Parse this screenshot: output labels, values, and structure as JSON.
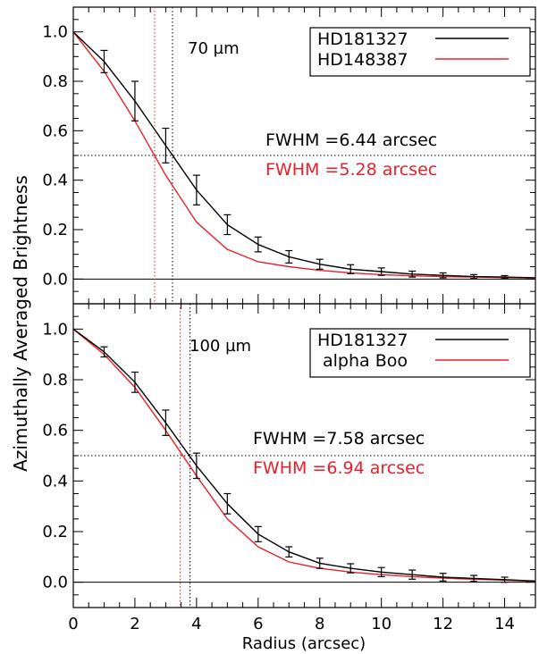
{
  "shared": {
    "xlabel": "Radius (arcsec)",
    "ylabel": "Azimuthally Averaged Brightness",
    "xlim": [
      0,
      15
    ],
    "xticks": [
      "0",
      "2",
      "4",
      "6",
      "8",
      "10",
      "12",
      "14"
    ]
  },
  "chart_data": [
    {
      "type": "line",
      "annotation": "70 µm",
      "xlim": [
        0,
        15
      ],
      "ylim": [
        -0.1,
        1.1
      ],
      "yticks": [
        "0.0",
        "0.2",
        "0.4",
        "0.6",
        "0.8",
        "1.0"
      ],
      "grid": false,
      "legend_position": "top-right",
      "series": [
        {
          "name": "HD181327",
          "color": "#000000",
          "x": [
            0,
            1,
            2,
            3,
            4,
            5,
            6,
            7,
            8,
            9,
            10,
            11,
            12,
            13,
            14,
            15
          ],
          "y": [
            1.0,
            0.88,
            0.72,
            0.54,
            0.36,
            0.22,
            0.14,
            0.09,
            0.06,
            0.04,
            0.03,
            0.02,
            0.015,
            0.01,
            0.008,
            0.005
          ],
          "yerr": [
            0,
            0.045,
            0.08,
            0.07,
            0.06,
            0.04,
            0.03,
            0.025,
            0.02,
            0.018,
            0.015,
            0.012,
            0.01,
            0.008,
            0.006,
            0
          ]
        },
        {
          "name": "HD148387",
          "color": "#e8202a",
          "x": [
            0,
            1,
            2,
            3,
            4,
            5,
            6,
            7,
            8,
            9,
            10,
            11,
            12,
            13,
            14,
            15
          ],
          "y": [
            1.0,
            0.84,
            0.64,
            0.42,
            0.23,
            0.12,
            0.07,
            0.05,
            0.035,
            0.025,
            0.018,
            0.013,
            0.01,
            0.008,
            0.006,
            0.004
          ]
        }
      ],
      "hline": 0.5,
      "vlines": [
        {
          "x": 3.22,
          "color": "#000000"
        },
        {
          "x": 2.64,
          "color": "#e8202a"
        }
      ],
      "fwhm_labels": [
        {
          "text": "FWHM =6.44 arcsec",
          "color": "#000000"
        },
        {
          "text": "FWHM =5.28 arcsec",
          "color": "#e8202a"
        }
      ]
    },
    {
      "type": "line",
      "annotation": "100 µm",
      "xlim": [
        0,
        15
      ],
      "ylim": [
        -0.1,
        1.1
      ],
      "yticks": [
        "0.0",
        "0.2",
        "0.4",
        "0.6",
        "0.8",
        "1.0"
      ],
      "grid": false,
      "legend_position": "top-right",
      "series": [
        {
          "name": "HD181327",
          "color": "#000000",
          "x": [
            0,
            1,
            2,
            3,
            4,
            5,
            6,
            7,
            8,
            9,
            10,
            11,
            12,
            13,
            14,
            15
          ],
          "y": [
            1.0,
            0.91,
            0.79,
            0.63,
            0.46,
            0.31,
            0.19,
            0.12,
            0.075,
            0.055,
            0.04,
            0.03,
            0.02,
            0.015,
            0.01,
            0.005
          ],
          "yerr": [
            0,
            0.02,
            0.04,
            0.05,
            0.05,
            0.04,
            0.03,
            0.02,
            0.02,
            0.018,
            0.018,
            0.018,
            0.015,
            0.012,
            0.01,
            0
          ]
        },
        {
          "name": "alpha Boo",
          "color": "#e8202a",
          "x": [
            0,
            1,
            2,
            3,
            4,
            5,
            6,
            7,
            8,
            9,
            10,
            11,
            12,
            13,
            14,
            15
          ],
          "y": [
            1.0,
            0.9,
            0.77,
            0.6,
            0.42,
            0.25,
            0.14,
            0.08,
            0.055,
            0.04,
            0.03,
            0.022,
            0.016,
            0.012,
            0.008,
            0.004
          ]
        }
      ],
      "hline": 0.5,
      "vlines": [
        {
          "x": 3.79,
          "color": "#000000"
        },
        {
          "x": 3.47,
          "color": "#e8202a"
        }
      ],
      "fwhm_labels": [
        {
          "text": "FWHM =7.58 arcsec",
          "color": "#000000"
        },
        {
          "text": "FWHM =6.94 arcsec",
          "color": "#e8202a"
        }
      ]
    }
  ]
}
